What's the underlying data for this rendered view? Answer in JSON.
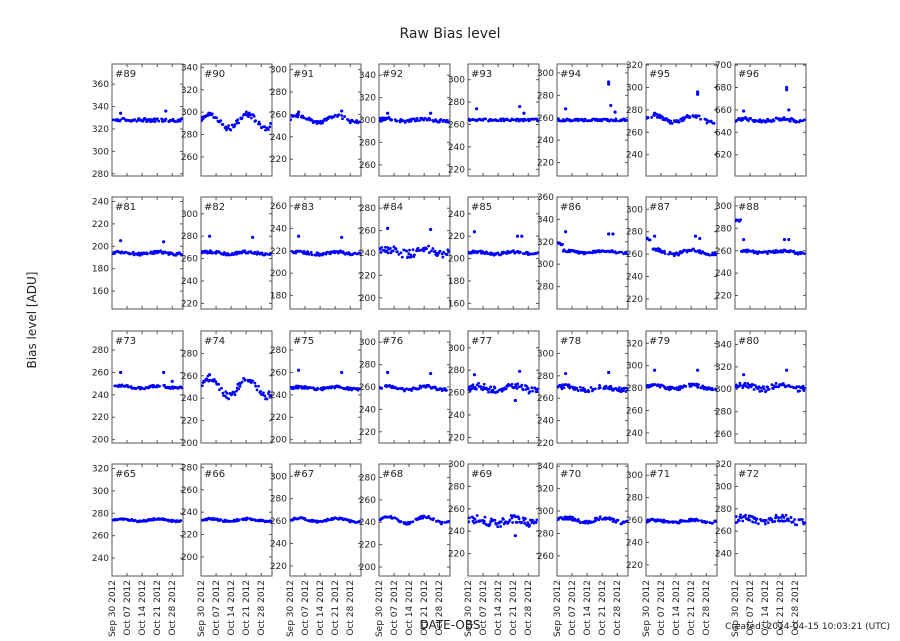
{
  "chart_data": {
    "type": "scatter",
    "title": "Raw Bias level",
    "xlabel": "DATE-OBS",
    "ylabel": "Bias level [ADU]",
    "footer": "Created: 2014-04-15 10:03:21 (UTC)",
    "series_color": "#0000ff",
    "grid": false,
    "xlim": [
      "2012-09-30",
      "2012-11-02"
    ],
    "xticks": [
      {
        "date": "2012-09-30",
        "label": "Sep 30 2012"
      },
      {
        "date": "2012-10-07",
        "label": "Oct 07 2012"
      },
      {
        "date": "2012-10-14",
        "label": "Oct 14 2012"
      },
      {
        "date": "2012-10-21",
        "label": "Oct 21 2012"
      },
      {
        "date": "2012-10-28",
        "label": "Oct 28 2012"
      }
    ],
    "panels": [
      {
        "label": "#89",
        "ylim": [
          278,
          378
        ],
        "yticks": [
          280,
          300,
          320,
          340,
          360
        ],
        "level": 328,
        "noise": 1.5,
        "wave": 0,
        "outliers": [
          {
            "date": "2012-10-04",
            "value": 334
          },
          {
            "date": "2012-10-25",
            "value": 336
          }
        ]
      },
      {
        "label": "#90",
        "ylim": [
          243,
          343
        ],
        "yticks": [
          260,
          280,
          300,
          320,
          340
        ],
        "level": 292,
        "noise": 2.5,
        "wave": 6,
        "outliers": []
      },
      {
        "label": "#91",
        "ylim": [
          205,
          305
        ],
        "yticks": [
          220,
          240,
          260,
          280,
          300
        ],
        "level": 256,
        "noise": 1.5,
        "wave": 3,
        "outliers": [
          {
            "date": "2012-10-04",
            "value": 262
          },
          {
            "date": "2012-10-24",
            "value": 263
          }
        ]
      },
      {
        "label": "#92",
        "ylim": [
          250,
          350
        ],
        "yticks": [
          260,
          280,
          300,
          320,
          340
        ],
        "level": 300,
        "noise": 1.5,
        "wave": 1,
        "outliers": [
          {
            "date": "2012-10-04",
            "value": 306
          },
          {
            "date": "2012-10-24",
            "value": 306
          }
        ]
      },
      {
        "label": "#93",
        "ylim": [
          214,
          314
        ],
        "yticks": [
          220,
          240,
          260,
          280,
          300
        ],
        "level": 264,
        "noise": 1,
        "wave": 0,
        "outliers": [
          {
            "date": "2012-10-04",
            "value": 274
          },
          {
            "date": "2012-10-24",
            "value": 276
          },
          {
            "date": "2012-10-26",
            "value": 270
          }
        ]
      },
      {
        "label": "#94",
        "ylim": [
          208,
          308
        ],
        "yticks": [
          220,
          240,
          260,
          280,
          300
        ],
        "level": 258,
        "noise": 1,
        "wave": 0,
        "outliers": [
          {
            "date": "2012-10-04",
            "value": 268
          },
          {
            "date": "2012-10-24",
            "value": 292
          },
          {
            "date": "2012-10-24",
            "value": 290
          },
          {
            "date": "2012-10-25",
            "value": 271
          },
          {
            "date": "2012-10-27",
            "value": 265
          }
        ]
      },
      {
        "label": "#95",
        "ylim": [
          221,
          321
        ],
        "yticks": [
          240,
          260,
          280,
          300,
          320
        ],
        "level": 272,
        "noise": 1.5,
        "wave": 3,
        "outliers": [
          {
            "date": "2012-10-04",
            "value": 277
          },
          {
            "date": "2012-10-24",
            "value": 296
          },
          {
            "date": "2012-10-24",
            "value": 294
          }
        ]
      },
      {
        "label": "#96",
        "ylim": [
          601,
          701
        ],
        "yticks": [
          620,
          640,
          660,
          680,
          700
        ],
        "level": 651,
        "noise": 1.5,
        "wave": 1,
        "outliers": [
          {
            "date": "2012-10-04",
            "value": 659
          },
          {
            "date": "2012-10-24",
            "value": 680
          },
          {
            "date": "2012-10-24",
            "value": 678
          },
          {
            "date": "2012-10-25",
            "value": 660
          }
        ]
      },
      {
        "label": "#81",
        "ylim": [
          144,
          244
        ],
        "yticks": [
          160,
          180,
          200,
          220,
          240
        ],
        "level": 194,
        "noise": 1.2,
        "wave": 1,
        "outliers": [
          {
            "date": "2012-10-04",
            "value": 205
          },
          {
            "date": "2012-10-24",
            "value": 204
          }
        ]
      },
      {
        "label": "#82",
        "ylim": [
          215,
          315
        ],
        "yticks": [
          220,
          240,
          260,
          280,
          300
        ],
        "level": 265,
        "noise": 1.2,
        "wave": 1,
        "outliers": [
          {
            "date": "2012-10-04",
            "value": 280
          },
          {
            "date": "2012-10-24",
            "value": 279
          }
        ]
      },
      {
        "label": "#83",
        "ylim": [
          168,
          268
        ],
        "yticks": [
          180,
          200,
          220,
          240,
          260
        ],
        "level": 218,
        "noise": 1.2,
        "wave": 1,
        "outliers": [
          {
            "date": "2012-10-04",
            "value": 233
          },
          {
            "date": "2012-10-24",
            "value": 232
          }
        ]
      },
      {
        "label": "#84",
        "ylim": [
          190,
          290
        ],
        "yticks": [
          200,
          220,
          240,
          260,
          280
        ],
        "level": 241,
        "noise": 3.5,
        "wave": 2,
        "outliers": [
          {
            "date": "2012-10-04",
            "value": 262
          },
          {
            "date": "2012-10-24",
            "value": 261
          }
        ]
      },
      {
        "label": "#85",
        "ylim": [
          155,
          255
        ],
        "yticks": [
          160,
          180,
          200,
          220,
          240
        ],
        "level": 205,
        "noise": 1.2,
        "wave": 1,
        "outliers": [
          {
            "date": "2012-10-03",
            "value": 224
          },
          {
            "date": "2012-10-23",
            "value": 220
          },
          {
            "date": "2012-10-25",
            "value": 220
          }
        ]
      },
      {
        "label": "#86",
        "ylim": [
          260,
          360
        ],
        "yticks": [
          280,
          300,
          320,
          340,
          360
        ],
        "level": 311,
        "noise": 1,
        "wave": 1,
        "start_level": 318,
        "outliers": [
          {
            "date": "2012-10-04",
            "value": 329
          },
          {
            "date": "2012-10-24",
            "value": 327
          },
          {
            "date": "2012-10-26",
            "value": 327
          }
        ]
      },
      {
        "label": "#87",
        "ylim": [
          211,
          311
        ],
        "yticks": [
          220,
          240,
          260,
          280,
          300
        ],
        "level": 262,
        "noise": 1.5,
        "wave": 2,
        "start_level": 273,
        "outliers": [
          {
            "date": "2012-10-04",
            "value": 276
          },
          {
            "date": "2012-10-23",
            "value": 276
          },
          {
            "date": "2012-10-25",
            "value": 274
          }
        ]
      },
      {
        "label": "#88",
        "ylim": [
          208,
          308
        ],
        "yticks": [
          220,
          240,
          260,
          280,
          300
        ],
        "level": 259,
        "noise": 1.2,
        "wave": 1,
        "start_level": 287,
        "outliers": [
          {
            "date": "2012-10-04",
            "value": 270
          },
          {
            "date": "2012-10-23",
            "value": 270
          },
          {
            "date": "2012-10-25",
            "value": 270
          }
        ]
      },
      {
        "label": "#73",
        "ylim": [
          197,
          297
        ],
        "yticks": [
          200,
          220,
          240,
          260,
          280
        ],
        "level": 247,
        "noise": 1,
        "wave": 1,
        "outliers": [
          {
            "date": "2012-10-04",
            "value": 260
          },
          {
            "date": "2012-10-24",
            "value": 260
          },
          {
            "date": "2012-10-28",
            "value": 252
          }
        ]
      },
      {
        "label": "#74",
        "ylim": [
          200,
          300
        ],
        "yticks": [
          200,
          220,
          240,
          260,
          280
        ],
        "level": 250,
        "noise": 3,
        "wave": 8,
        "outliers": [
          {
            "date": "2012-10-04",
            "value": 261
          }
        ]
      },
      {
        "label": "#75",
        "ylim": [
          197,
          297
        ],
        "yticks": [
          200,
          220,
          240,
          260,
          280
        ],
        "level": 246,
        "noise": 1,
        "wave": 1,
        "outliers": [
          {
            "date": "2012-10-04",
            "value": 262
          },
          {
            "date": "2012-10-24",
            "value": 260
          }
        ]
      },
      {
        "label": "#76",
        "ylim": [
          210,
          310
        ],
        "yticks": [
          220,
          240,
          260,
          280,
          300
        ],
        "level": 259,
        "noise": 1.2,
        "wave": 1.5,
        "outliers": [
          {
            "date": "2012-10-04",
            "value": 273
          },
          {
            "date": "2012-10-24",
            "value": 272
          }
        ]
      },
      {
        "label": "#77",
        "ylim": [
          215,
          315
        ],
        "yticks": [
          220,
          240,
          260,
          280,
          300
        ],
        "level": 264,
        "noise": 3,
        "wave": 2,
        "outliers": [
          {
            "date": "2012-10-03",
            "value": 276
          },
          {
            "date": "2012-10-24",
            "value": 279
          },
          {
            "date": "2012-10-22",
            "value": 253
          }
        ]
      },
      {
        "label": "#78",
        "ylim": [
          220,
          320
        ],
        "yticks": [
          220,
          240,
          260,
          280,
          300
        ],
        "level": 269,
        "noise": 2,
        "wave": 1.5,
        "outliers": [
          {
            "date": "2012-10-04",
            "value": 282
          },
          {
            "date": "2012-10-24",
            "value": 283
          }
        ]
      },
      {
        "label": "#79",
        "ylim": [
          231,
          331
        ],
        "yticks": [
          240,
          260,
          280,
          300,
          320
        ],
        "level": 281,
        "noise": 1.5,
        "wave": 1.5,
        "outliers": [
          {
            "date": "2012-10-04",
            "value": 296
          },
          {
            "date": "2012-10-24",
            "value": 296
          }
        ]
      },
      {
        "label": "#80",
        "ylim": [
          252,
          352
        ],
        "yticks": [
          260,
          280,
          300,
          320,
          340
        ],
        "level": 302,
        "noise": 2.5,
        "wave": 2,
        "outliers": [
          {
            "date": "2012-10-04",
            "value": 313
          },
          {
            "date": "2012-10-24",
            "value": 317
          }
        ]
      },
      {
        "label": "#65",
        "ylim": [
          224,
          324
        ],
        "yticks": [
          240,
          260,
          280,
          300,
          320
        ],
        "level": 274,
        "noise": 0.8,
        "wave": 1,
        "outliers": []
      },
      {
        "label": "#66",
        "ylim": [
          183,
          283
        ],
        "yticks": [
          200,
          220,
          240,
          260,
          280
        ],
        "level": 233,
        "noise": 0.8,
        "wave": 1,
        "outliers": []
      },
      {
        "label": "#67",
        "ylim": [
          211,
          311
        ],
        "yticks": [
          220,
          240,
          260,
          280,
          300
        ],
        "level": 261,
        "noise": 0.8,
        "wave": 1.5,
        "outliers": []
      },
      {
        "label": "#68",
        "ylim": [
          192,
          292
        ],
        "yticks": [
          200,
          220,
          240,
          260,
          280
        ],
        "level": 242,
        "noise": 1,
        "wave": 3,
        "outliers": []
      },
      {
        "label": "#69",
        "ylim": [
          200,
          300
        ],
        "yticks": [
          220,
          240,
          260,
          280,
          300
        ],
        "level": 249,
        "noise": 3.5,
        "wave": 2,
        "outliers": [
          {
            "date": "2012-10-22",
            "value": 236
          }
        ]
      },
      {
        "label": "#70",
        "ylim": [
          242,
          342
        ],
        "yticks": [
          260,
          280,
          300,
          320,
          340
        ],
        "level": 292,
        "noise": 1.5,
        "wave": 2,
        "outliers": []
      },
      {
        "label": "#71",
        "ylim": [
          210,
          310
        ],
        "yticks": [
          220,
          240,
          260,
          280,
          300
        ],
        "level": 259,
        "noise": 1.2,
        "wave": 1,
        "outliers": []
      },
      {
        "label": "#72",
        "ylim": [
          220,
          320
        ],
        "yticks": [
          240,
          260,
          280,
          300,
          320
        ],
        "level": 270,
        "noise": 3,
        "wave": 2,
        "outliers": []
      }
    ]
  }
}
